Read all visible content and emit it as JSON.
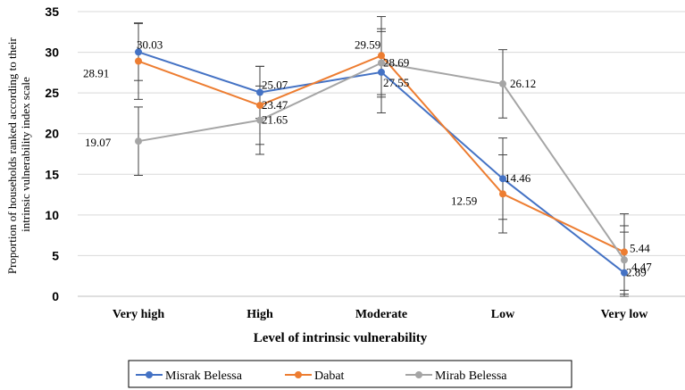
{
  "chart_data": {
    "type": "line",
    "categories": [
      "Very high",
      "High",
      "Moderate",
      "Low",
      "Very low"
    ],
    "xlabel": "Level of intrinsic vulnerability",
    "ylabel": [
      "Proportion of households ranked according to their",
      "intrinsic vulnerability index scale"
    ],
    "ylim": [
      0,
      35
    ],
    "yticks": [
      0,
      5,
      10,
      15,
      20,
      25,
      30,
      35
    ],
    "grid": true,
    "legend_position": "bottom",
    "series": [
      {
        "name": "Misrak Belessa",
        "color": "#4472C4",
        "values": [
          30.03,
          25.07,
          27.55,
          14.46,
          2.89
        ],
        "labels": [
          "30.03",
          "25.07",
          "27.55",
          "14.46",
          "2.89"
        ],
        "errors": [
          3.5,
          3.2,
          5.0,
          5.0,
          5.0
        ]
      },
      {
        "name": "Dabat",
        "color": "#ED7D31",
        "values": [
          28.91,
          23.47,
          29.59,
          12.59,
          5.44
        ],
        "labels": [
          "28.91",
          "23.47",
          "29.59",
          "12.59",
          "5.44"
        ],
        "errors": [
          4.7,
          4.8,
          4.8,
          4.8,
          4.7
        ]
      },
      {
        "name": "Mirab Belessa",
        "color": "#A5A5A5",
        "values": [
          19.07,
          21.65,
          28.69,
          26.12,
          4.47
        ],
        "labels": [
          "19.07",
          "21.65",
          "28.69",
          "26.12",
          "4.47"
        ],
        "errors": [
          4.2,
          4.2,
          4.2,
          4.2,
          4.2
        ]
      }
    ]
  }
}
